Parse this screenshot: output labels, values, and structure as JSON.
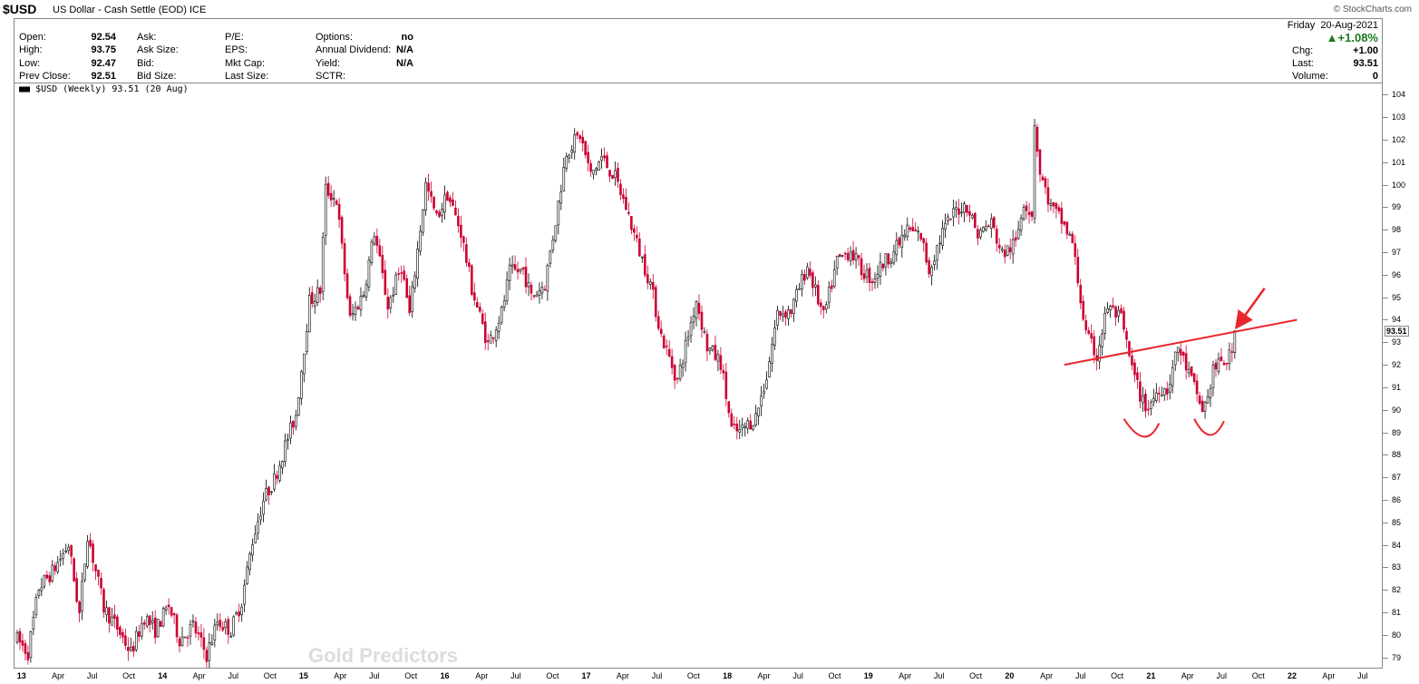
{
  "header": {
    "ticker": "$USD",
    "description": "US Dollar - Cash Settle (EOD) ICE",
    "credit": "© StockCharts.com"
  },
  "quote": {
    "open_label": "Open:",
    "open": "92.54",
    "high_label": "High:",
    "high": "93.75",
    "low_label": "Low:",
    "low": "92.47",
    "prev_close_label": "Prev Close:",
    "prev_close": "92.51",
    "ask_label": "Ask:",
    "ask_size_label": "Ask Size:",
    "bid_label": "Bid:",
    "bid_size_label": "Bid Size:",
    "pe_label": "P/E:",
    "eps_label": "EPS:",
    "mkt_cap_label": "Mkt Cap:",
    "last_size_label": "Last Size:",
    "options_label": "Options:",
    "options": "no",
    "dividend_label": "Annual Dividend:",
    "dividend": "N/A",
    "yield_label": "Yield:",
    "yield": "N/A",
    "sctr_label": "SCTR:",
    "date": "Friday  20-Aug-2021",
    "pct_change": "▲+1.08%",
    "chg_label": "Chg:",
    "chg": "+1.00",
    "last_label": "Last:",
    "last": "93.51",
    "volume_label": "Volume:",
    "volume": "0"
  },
  "legend": "$USD (Weekly) 93.51 (20 Aug)",
  "watermark": "Gold Predictors",
  "colors": {
    "up_candle": "#000000",
    "down_candle": "#cc0033",
    "annotation": "#e8262b",
    "positive": "#1a7a1a"
  },
  "chart_data": {
    "type": "candlestick",
    "series_name": "$USD (Weekly)",
    "ylim": [
      78.5,
      104.5
    ],
    "yticks": [
      79,
      80,
      81,
      82,
      83,
      84,
      85,
      86,
      87,
      88,
      89,
      90,
      91,
      92,
      93,
      94,
      95,
      96,
      97,
      98,
      99,
      100,
      101,
      102,
      103,
      104
    ],
    "last_value": 93.51,
    "last_label": "93.51",
    "xlim": [
      "2012-12-28",
      "2022-09-09"
    ],
    "xticks": [
      {
        "label": "13",
        "date": "2013-01-01",
        "year": true
      },
      {
        "label": "Apr",
        "date": "2013-04-01"
      },
      {
        "label": "Jul",
        "date": "2013-07-01"
      },
      {
        "label": "Oct",
        "date": "2013-10-01"
      },
      {
        "label": "14",
        "date": "2014-01-01",
        "year": true
      },
      {
        "label": "Apr",
        "date": "2014-04-01"
      },
      {
        "label": "Jul",
        "date": "2014-07-01"
      },
      {
        "label": "Oct",
        "date": "2014-10-01"
      },
      {
        "label": "15",
        "date": "2015-01-01",
        "year": true
      },
      {
        "label": "Apr",
        "date": "2015-04-01"
      },
      {
        "label": "Jul",
        "date": "2015-07-01"
      },
      {
        "label": "Oct",
        "date": "2015-10-01"
      },
      {
        "label": "16",
        "date": "2016-01-01",
        "year": true
      },
      {
        "label": "Apr",
        "date": "2016-04-01"
      },
      {
        "label": "Jul",
        "date": "2016-07-01"
      },
      {
        "label": "Oct",
        "date": "2016-10-01"
      },
      {
        "label": "17",
        "date": "2017-01-01",
        "year": true
      },
      {
        "label": "Apr",
        "date": "2017-04-01"
      },
      {
        "label": "Jul",
        "date": "2017-07-01"
      },
      {
        "label": "Oct",
        "date": "2017-10-01"
      },
      {
        "label": "18",
        "date": "2018-01-01",
        "year": true
      },
      {
        "label": "Apr",
        "date": "2018-04-01"
      },
      {
        "label": "Jul",
        "date": "2018-07-01"
      },
      {
        "label": "Oct",
        "date": "2018-10-01"
      },
      {
        "label": "19",
        "date": "2019-01-01",
        "year": true
      },
      {
        "label": "Apr",
        "date": "2019-04-01"
      },
      {
        "label": "Jul",
        "date": "2019-07-01"
      },
      {
        "label": "Oct",
        "date": "2019-10-01"
      },
      {
        "label": "20",
        "date": "2020-01-01",
        "year": true
      },
      {
        "label": "Apr",
        "date": "2020-04-01"
      },
      {
        "label": "Jul",
        "date": "2020-07-01"
      },
      {
        "label": "Oct",
        "date": "2020-10-01"
      },
      {
        "label": "21",
        "date": "2021-01-01",
        "year": true
      },
      {
        "label": "Apr",
        "date": "2021-04-01"
      },
      {
        "label": "Jul",
        "date": "2021-07-01"
      },
      {
        "label": "Oct",
        "date": "2021-10-01"
      },
      {
        "label": "22",
        "date": "2022-01-01",
        "year": true
      },
      {
        "label": "Apr",
        "date": "2022-04-01"
      },
      {
        "label": "Jul",
        "date": "2022-07-01"
      }
    ],
    "price_path": [
      [
        "2013-01-04",
        79.8
      ],
      [
        "2013-02-01",
        79.2
      ],
      [
        "2013-03-01",
        82.1
      ],
      [
        "2013-04-05",
        82.8
      ],
      [
        "2013-05-17",
        84.0
      ],
      [
        "2013-06-14",
        80.9
      ],
      [
        "2013-07-05",
        84.5
      ],
      [
        "2013-08-16",
        81.2
      ],
      [
        "2013-09-20",
        80.3
      ],
      [
        "2013-10-25",
        79.2
      ],
      [
        "2013-11-29",
        80.8
      ],
      [
        "2013-12-27",
        80.2
      ],
      [
        "2014-01-31",
        81.3
      ],
      [
        "2014-02-28",
        79.8
      ],
      [
        "2014-04-04",
        80.4
      ],
      [
        "2014-05-09",
        79.1
      ],
      [
        "2014-06-06",
        80.6
      ],
      [
        "2014-07-11",
        80.2
      ],
      [
        "2014-08-08",
        81.5
      ],
      [
        "2014-09-05",
        84.2
      ],
      [
        "2014-10-03",
        86.0
      ],
      [
        "2014-10-31",
        86.9
      ],
      [
        "2014-11-28",
        88.4
      ],
      [
        "2014-12-26",
        89.8
      ],
      [
        "2015-01-30",
        94.8
      ],
      [
        "2015-02-27",
        95.3
      ],
      [
        "2015-03-13",
        99.8
      ],
      [
        "2015-04-10",
        99.3
      ],
      [
        "2015-05-15",
        94.0
      ],
      [
        "2015-06-19",
        95.2
      ],
      [
        "2015-07-17",
        97.9
      ],
      [
        "2015-08-21",
        94.6
      ],
      [
        "2015-09-25",
        96.4
      ],
      [
        "2015-10-16",
        94.2
      ],
      [
        "2015-11-27",
        100.0
      ],
      [
        "2015-12-25",
        98.5
      ],
      [
        "2016-01-22",
        99.6
      ],
      [
        "2016-02-26",
        97.9
      ],
      [
        "2016-03-25",
        95.4
      ],
      [
        "2016-05-06",
        92.9
      ],
      [
        "2016-06-10",
        94.3
      ],
      [
        "2016-07-01",
        96.1
      ],
      [
        "2016-08-05",
        96.2
      ],
      [
        "2016-08-26",
        95.0
      ],
      [
        "2016-09-30",
        95.6
      ],
      [
        "2016-10-28",
        98.4
      ],
      [
        "2016-11-25",
        101.5
      ],
      [
        "2016-12-30",
        102.2
      ],
      [
        "2017-01-27",
        100.4
      ],
      [
        "2017-02-24",
        101.2
      ],
      [
        "2017-03-31",
        100.3
      ],
      [
        "2017-04-28",
        99.0
      ],
      [
        "2017-05-26",
        97.4
      ],
      [
        "2017-06-30",
        95.6
      ],
      [
        "2017-07-28",
        93.3
      ],
      [
        "2017-09-08",
        91.3
      ],
      [
        "2017-10-27",
        94.9
      ],
      [
        "2017-11-24",
        92.8
      ],
      [
        "2017-12-29",
        92.1
      ],
      [
        "2018-01-26",
        89.1
      ],
      [
        "2018-02-16",
        89.0
      ],
      [
        "2018-03-30",
        89.7
      ],
      [
        "2018-04-27",
        91.5
      ],
      [
        "2018-05-25",
        94.3
      ],
      [
        "2018-06-29",
        94.4
      ],
      [
        "2018-08-10",
        96.4
      ],
      [
        "2018-09-21",
        94.1
      ],
      [
        "2018-10-26",
        96.6
      ],
      [
        "2018-11-30",
        97.1
      ],
      [
        "2018-12-28",
        96.2
      ],
      [
        "2019-01-25",
        95.8
      ],
      [
        "2019-02-22",
        96.5
      ],
      [
        "2019-03-29",
        97.2
      ],
      [
        "2019-04-26",
        98.0
      ],
      [
        "2019-05-31",
        97.7
      ],
      [
        "2019-06-21",
        96.2
      ],
      [
        "2019-07-26",
        97.9
      ],
      [
        "2019-08-30",
        98.9
      ],
      [
        "2019-09-27",
        99.1
      ],
      [
        "2019-10-25",
        97.8
      ],
      [
        "2019-11-29",
        98.3
      ],
      [
        "2019-12-27",
        96.9
      ],
      [
        "2020-01-31",
        97.4
      ],
      [
        "2020-02-21",
        99.3
      ],
      [
        "2020-03-13",
        98.7
      ],
      [
        "2020-03-20",
        102.8
      ],
      [
        "2020-04-03",
        100.5
      ],
      [
        "2020-05-01",
        99.0
      ],
      [
        "2020-05-29",
        98.4
      ],
      [
        "2020-06-26",
        97.4
      ],
      [
        "2020-07-31",
        93.3
      ],
      [
        "2020-08-28",
        92.4
      ],
      [
        "2020-09-25",
        94.6
      ],
      [
        "2020-10-30",
        94.0
      ],
      [
        "2020-11-27",
        91.8
      ],
      [
        "2020-12-25",
        90.3
      ],
      [
        "2021-01-08",
        90.1
      ],
      [
        "2021-02-05",
        91.0
      ],
      [
        "2021-02-26",
        90.9
      ],
      [
        "2021-03-26",
        92.8
      ],
      [
        "2021-04-30",
        91.3
      ],
      [
        "2021-05-28",
        90.0
      ],
      [
        "2021-06-11",
        90.5
      ],
      [
        "2021-06-25",
        91.8
      ],
      [
        "2021-07-30",
        92.2
      ],
      [
        "2021-08-13",
        92.5
      ],
      [
        "2021-08-20",
        93.51
      ]
    ],
    "annotations": {
      "neckline": {
        "from": [
          "2020-06-05",
          92.0
        ],
        "to": [
          "2022-01-28",
          94.0
        ]
      },
      "arrow": {
        "from": [
          "2021-11-05",
          95.4
        ],
        "to": [
          "2021-09-03",
          93.9
        ]
      },
      "curve_left_shoulder": {
        "points": [
          [
            "2020-11-06",
            89.6
          ],
          [
            "2021-01-01",
            88.6
          ],
          [
            "2021-02-05",
            89.4
          ]
        ]
      },
      "curve_right_shoulder": {
        "points": [
          [
            "2021-05-07",
            89.6
          ],
          [
            "2021-06-18",
            88.7
          ],
          [
            "2021-07-23",
            89.5
          ]
        ]
      }
    }
  }
}
